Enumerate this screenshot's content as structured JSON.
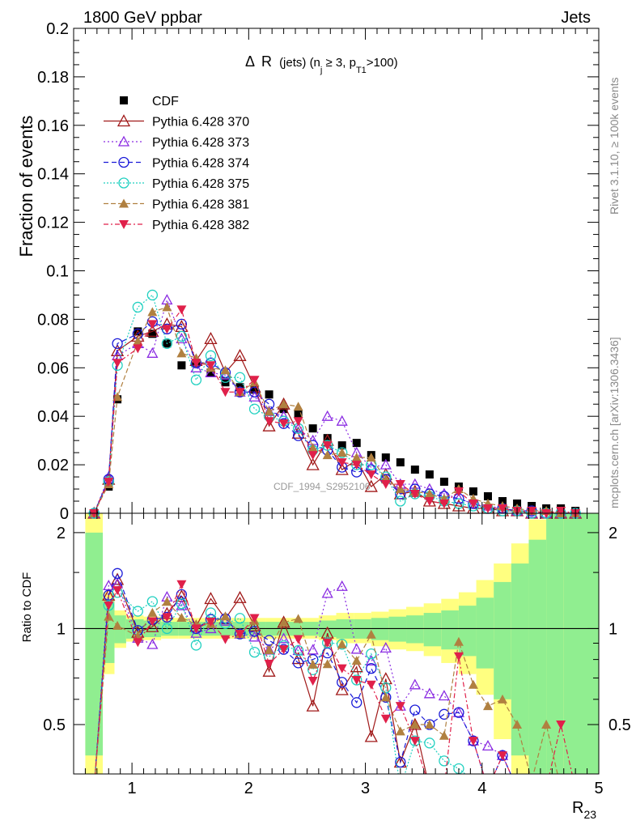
{
  "header": {
    "left_title": "1800 GeV ppbar",
    "right_title": "Jets",
    "side_label_1": "Rivet 3.1.10, ≥ 100k events",
    "side_label_2": "mcplots.cern.ch [arXiv:1306.3436]",
    "watermark": "CDF_1994_S2952106"
  },
  "chart_data": {
    "type": "scatter",
    "title": "Δ R (jets) (n_j ≥ 3, p_T1>100)",
    "title_parts": {
      "delta": "Δ",
      "R": "R",
      "rest_pre": "(jets) (n",
      "sub_j": "j",
      "rest_mid": " ≥ 3, p",
      "sub_T1": "T1",
      "rest_post": ">100)"
    },
    "xlabel": "R",
    "xlabel_sub": "23",
    "ylabel_top": "Fraction of events",
    "ylabel_bottom": "Ratio to CDF",
    "xlim": [
      0.5,
      5.0
    ],
    "ylim_top": [
      0,
      0.2
    ],
    "ylim_bottom": [
      0.35,
      2.3
    ],
    "x_ticks": [
      "1",
      "2",
      "3",
      "4",
      "5"
    ],
    "y_ticks_top": [
      "0",
      "0.02",
      "0.04",
      "0.06",
      "0.08",
      "0.1",
      "0.12",
      "0.14",
      "0.16",
      "0.18",
      "0.2"
    ],
    "y_ticks_bottom": [
      "0.5",
      "1",
      "2"
    ],
    "legend": [
      {
        "name": "CDF",
        "color": "#000000",
        "marker": "square"
      },
      {
        "name": "Pythia 6.428 370",
        "color": "#a01818",
        "marker": "tri-up-open"
      },
      {
        "name": "Pythia 6.428 373",
        "color": "#8a2be2",
        "marker": "tri-up-open-small"
      },
      {
        "name": "Pythia 6.428 374",
        "color": "#1a1ad8",
        "marker": "circle-open"
      },
      {
        "name": "Pythia 6.428 375",
        "color": "#20d0c0",
        "marker": "circle-open"
      },
      {
        "name": "Pythia 6.428 381",
        "color": "#b08040",
        "marker": "tri-up-filled"
      },
      {
        "name": "Pythia 6.428 382",
        "color": "#e0204a",
        "marker": "tri-down-filled"
      }
    ],
    "x": [
      0.675,
      0.8,
      0.875,
      1.05,
      1.175,
      1.3,
      1.425,
      1.55,
      1.675,
      1.8,
      1.925,
      2.05,
      2.175,
      2.3,
      2.425,
      2.55,
      2.675,
      2.8,
      2.925,
      3.05,
      3.175,
      3.3,
      3.425,
      3.55,
      3.675,
      3.8,
      3.925,
      4.05,
      4.175,
      4.3,
      4.425,
      4.55,
      4.675,
      4.8
    ],
    "series": [
      {
        "name": "CDF",
        "values": [
          0.0,
          0.011,
          0.047,
          0.075,
          0.074,
          0.07,
          0.061,
          0.062,
          0.058,
          0.054,
          0.052,
          0.051,
          0.049,
          0.043,
          0.041,
          0.035,
          0.031,
          0.028,
          0.029,
          0.024,
          0.023,
          0.021,
          0.018,
          0.016,
          0.013,
          0.011,
          0.009,
          0.007,
          0.005,
          0.004,
          0.003,
          0.002,
          0.002,
          0.001
        ]
      },
      {
        "name": "Pythia 6.428 370",
        "values": [
          0.0,
          0.014,
          0.067,
          0.073,
          0.075,
          0.078,
          0.077,
          0.063,
          0.072,
          0.058,
          0.065,
          0.052,
          0.036,
          0.045,
          0.033,
          0.02,
          0.03,
          0.018,
          0.022,
          0.011,
          0.016,
          0.008,
          0.009,
          0.005,
          0.004,
          0.003,
          0.002,
          0.002,
          0.001,
          0.001,
          0.0,
          0.0,
          0.0,
          0.0
        ]
      },
      {
        "name": "Pythia 6.428 373",
        "values": [
          0.0,
          0.015,
          0.065,
          0.07,
          0.066,
          0.088,
          0.072,
          0.06,
          0.058,
          0.057,
          0.05,
          0.048,
          0.042,
          0.04,
          0.035,
          0.03,
          0.04,
          0.038,
          0.025,
          0.019,
          0.02,
          0.012,
          0.012,
          0.01,
          0.008,
          0.006,
          0.004,
          0.003,
          0.002,
          0.001,
          0.0,
          0.0,
          0.0,
          0.0
        ]
      },
      {
        "name": "Pythia 6.428 374",
        "values": [
          0.0,
          0.014,
          0.07,
          0.074,
          0.079,
          0.076,
          0.078,
          0.062,
          0.062,
          0.058,
          0.05,
          0.05,
          0.045,
          0.037,
          0.032,
          0.028,
          0.026,
          0.019,
          0.017,
          0.018,
          0.014,
          0.008,
          0.01,
          0.008,
          0.007,
          0.006,
          0.004,
          0.002,
          0.002,
          0.001,
          0.001,
          0.0,
          0.0,
          0.0
        ]
      },
      {
        "name": "Pythia 6.428 375",
        "values": [
          0.0,
          0.013,
          0.061,
          0.085,
          0.09,
          0.07,
          0.073,
          0.055,
          0.065,
          0.056,
          0.056,
          0.043,
          0.04,
          0.038,
          0.035,
          0.026,
          0.028,
          0.025,
          0.02,
          0.02,
          0.015,
          0.005,
          0.008,
          0.007,
          0.005,
          0.004,
          0.003,
          0.002,
          0.001,
          0.001,
          0.0,
          0.0,
          0.0,
          0.0
        ]
      },
      {
        "name": "Pythia 6.428 381",
        "values": [
          0.0,
          0.012,
          0.048,
          0.071,
          0.083,
          0.085,
          0.066,
          0.064,
          0.06,
          0.059,
          0.05,
          0.054,
          0.042,
          0.045,
          0.044,
          0.027,
          0.024,
          0.025,
          0.023,
          0.023,
          0.014,
          0.01,
          0.009,
          0.008,
          0.006,
          0.01,
          0.006,
          0.004,
          0.003,
          0.002,
          0.001,
          0.001,
          0.0,
          0.0
        ]
      },
      {
        "name": "Pythia 6.428 382",
        "values": [
          0.0,
          0.013,
          0.062,
          0.068,
          0.078,
          0.076,
          0.084,
          0.062,
          0.061,
          0.05,
          0.05,
          0.055,
          0.038,
          0.037,
          0.038,
          0.024,
          0.028,
          0.021,
          0.02,
          0.016,
          0.012,
          0.012,
          0.008,
          0.005,
          0.004,
          0.009,
          0.004,
          0.002,
          0.002,
          0.001,
          0.001,
          0.0,
          0.001,
          0.0
        ]
      }
    ],
    "ratio_band": {
      "x_edges": [
        0.6,
        0.75,
        0.85,
        0.95,
        1.1,
        1.25,
        1.4,
        1.55,
        1.7,
        1.85,
        2.0,
        2.15,
        2.3,
        2.45,
        2.6,
        2.75,
        2.9,
        3.05,
        3.2,
        3.35,
        3.5,
        3.65,
        3.8,
        3.95,
        4.1,
        4.25,
        4.4,
        4.55,
        4.7,
        5.0
      ],
      "inner_lo": [
        0.4,
        0.78,
        0.9,
        0.93,
        0.94,
        0.95,
        0.95,
        0.95,
        0.95,
        0.95,
        0.95,
        0.95,
        0.95,
        0.95,
        0.94,
        0.93,
        0.93,
        0.92,
        0.91,
        0.9,
        0.88,
        0.86,
        0.82,
        0.75,
        0.6,
        0.4,
        0.35,
        0.35,
        0.35
      ],
      "inner_hi": [
        2.0,
        1.22,
        1.1,
        1.07,
        1.06,
        1.05,
        1.05,
        1.05,
        1.05,
        1.05,
        1.05,
        1.05,
        1.05,
        1.05,
        1.06,
        1.07,
        1.07,
        1.08,
        1.09,
        1.1,
        1.12,
        1.14,
        1.18,
        1.25,
        1.4,
        1.6,
        1.9,
        2.3,
        2.3
      ],
      "outer_lo": [
        0.35,
        0.72,
        0.87,
        0.91,
        0.92,
        0.93,
        0.93,
        0.93,
        0.93,
        0.93,
        0.93,
        0.93,
        0.93,
        0.93,
        0.92,
        0.9,
        0.9,
        0.88,
        0.86,
        0.85,
        0.82,
        0.78,
        0.72,
        0.62,
        0.45,
        0.35,
        0.35,
        0.35,
        0.35
      ],
      "outer_hi": [
        2.3,
        1.3,
        1.14,
        1.1,
        1.09,
        1.08,
        1.08,
        1.08,
        1.08,
        1.08,
        1.08,
        1.08,
        1.08,
        1.08,
        1.1,
        1.12,
        1.12,
        1.13,
        1.15,
        1.17,
        1.2,
        1.24,
        1.3,
        1.42,
        1.6,
        1.85,
        2.2,
        2.3,
        2.3
      ]
    }
  }
}
